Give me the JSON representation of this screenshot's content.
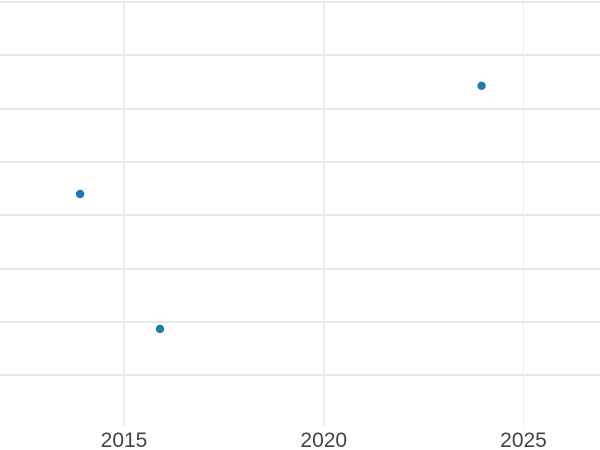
{
  "chart": {
    "background_color": "#ffffff",
    "gridline_color": "#e8e8e8",
    "tick_label_color": "#444444",
    "point_color": "#1f77b4"
  },
  "chart_data": {
    "type": "scatter",
    "title": "",
    "xlabel": "",
    "ylabel": "",
    "legend": "none",
    "grid": "on",
    "x_axis": {
      "tick_labels": [
        "2015",
        "2020",
        "2025"
      ],
      "tick_years": [
        2015,
        2020,
        2025
      ],
      "visible_range_years": [
        2011.9,
        2026.9
      ]
    },
    "y_axis": {
      "tick_labels_visible": false,
      "num_gridlines": 8
    },
    "points": [
      {
        "year_label": 2014,
        "x_year": 2013.9,
        "y_grid_units_from_bottom": 4.4
      },
      {
        "year_label": 2016,
        "x_year": 2015.9,
        "y_grid_units_from_bottom": 1.87
      },
      {
        "year_label": 2024,
        "x_year": 2023.95,
        "y_grid_units_from_bottom": 6.43
      }
    ]
  }
}
